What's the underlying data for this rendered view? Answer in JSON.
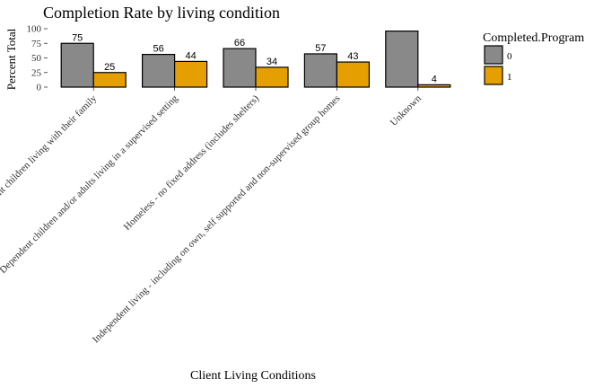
{
  "chart_data": {
    "type": "bar",
    "title": "Completion Rate by living condition",
    "xlabel": "Client Living Conditions",
    "ylabel": "Percent Total",
    "ylim": [
      0,
      100
    ],
    "yticks": [
      0,
      25,
      50,
      75,
      100
    ],
    "grid": false,
    "legend": {
      "title": "Completed.Program",
      "placement": "right"
    },
    "categories": [
      "Dependent children living with their family",
      "Dependent children and/or adults living in a supervised setting",
      "Homeless - no fixed address (includes shelters)",
      "Independent living - including on own, self supported and non-supervised group homes",
      "Unknown"
    ],
    "series": [
      {
        "name": "0",
        "color": "#898989",
        "values": [
          75,
          56,
          66,
          57,
          96
        ],
        "labels": [
          "75",
          "56",
          "66",
          "57",
          ""
        ]
      },
      {
        "name": "1",
        "color": "#E69F00",
        "values": [
          25,
          44,
          34,
          43,
          4
        ],
        "labels": [
          "25",
          "44",
          "34",
          "43",
          "4"
        ]
      }
    ]
  }
}
